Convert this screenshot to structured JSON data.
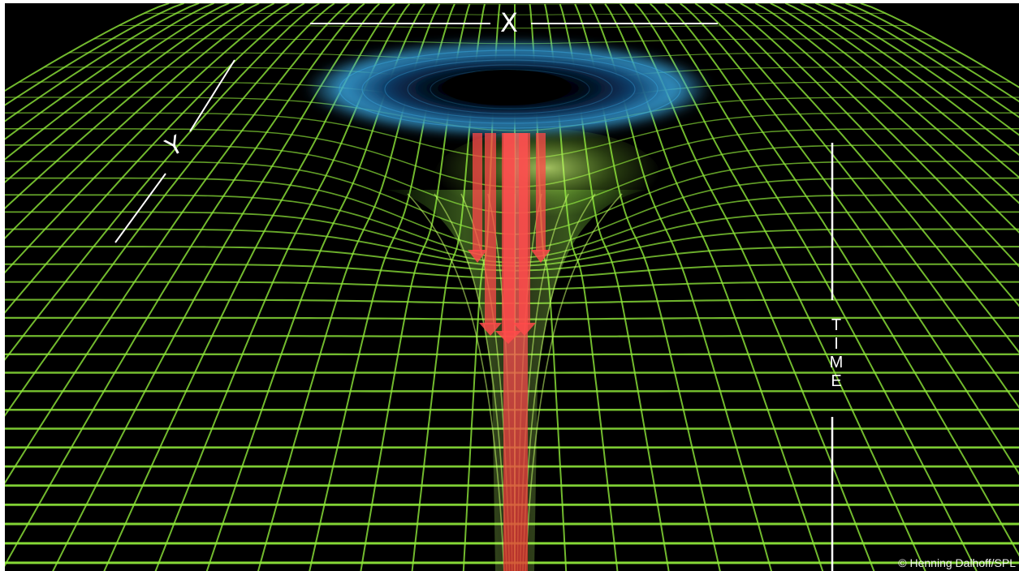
{
  "image": {
    "subject": "spacetime-grid-black-hole-illustration",
    "colors": {
      "background": "#000000",
      "grid": "#8fe83a",
      "grid_glow": "#c8ff6a",
      "vortex": "#3aa7e0",
      "arrow": "#ff4a4a",
      "axis_line": "#ffffff"
    }
  },
  "labels": {
    "x_axis": "X",
    "y_axis": "Y",
    "time_axis": [
      "T",
      "I",
      "M",
      "E"
    ]
  },
  "credit": "© Henning Dalhoff/SPL"
}
